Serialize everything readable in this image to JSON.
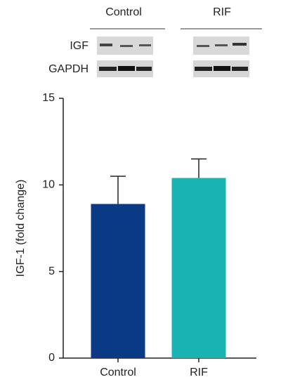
{
  "blot": {
    "groups": [
      "Control",
      "RIF"
    ],
    "rows": [
      "IGF",
      "GAPDH"
    ]
  },
  "chart_data": {
    "type": "bar",
    "y_label": "IGF-1 (fold change)",
    "categories": [
      "Control",
      "RIF"
    ],
    "values": [
      8.9,
      10.4
    ],
    "errors": [
      1.6,
      1.1
    ],
    "colors": [
      "#0a3a85",
      "#1ab3b3"
    ],
    "ylim": [
      0,
      15
    ],
    "yticks": [
      0,
      5,
      10,
      15
    ],
    "grid": false
  }
}
